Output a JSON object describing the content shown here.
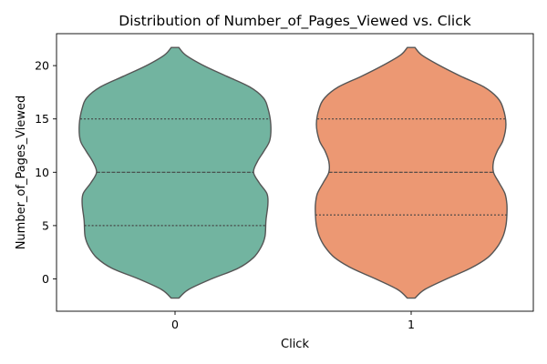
{
  "chart_data": {
    "type": "violin",
    "title": "Distribution of Number_of_Pages_Viewed vs. Click",
    "xlabel": "Click",
    "ylabel": "Number_of_Pages_Viewed",
    "ylim": [
      -3,
      23
    ],
    "yticks": [
      0,
      5,
      10,
      15,
      20
    ],
    "grid": false,
    "series": [
      {
        "category": "0",
        "color": "#72b4a0",
        "y_range": [
          -1.8,
          21.7
        ],
        "quartiles": {
          "q1": 5,
          "median": 10,
          "q3": 15
        },
        "half_width_profile": [
          {
            "y": -1.8,
            "w": 0.04
          },
          {
            "y": -1.0,
            "w": 0.14
          },
          {
            "y": 0.0,
            "w": 0.38
          },
          {
            "y": 1.0,
            "w": 0.66
          },
          {
            "y": 2.0,
            "w": 0.82
          },
          {
            "y": 3.0,
            "w": 0.9
          },
          {
            "y": 4.0,
            "w": 0.94
          },
          {
            "y": 5.5,
            "w": 0.95
          },
          {
            "y": 7.0,
            "w": 0.97
          },
          {
            "y": 8.0,
            "w": 0.96
          },
          {
            "y": 9.0,
            "w": 0.88
          },
          {
            "y": 10.0,
            "w": 0.82
          },
          {
            "y": 11.0,
            "w": 0.86
          },
          {
            "y": 12.0,
            "w": 0.93
          },
          {
            "y": 13.0,
            "w": 0.99
          },
          {
            "y": 14.5,
            "w": 1.0
          },
          {
            "y": 16.0,
            "w": 0.97
          },
          {
            "y": 17.0,
            "w": 0.92
          },
          {
            "y": 18.0,
            "w": 0.78
          },
          {
            "y": 19.0,
            "w": 0.54
          },
          {
            "y": 20.0,
            "w": 0.3
          },
          {
            "y": 21.0,
            "w": 0.11
          },
          {
            "y": 21.7,
            "w": 0.04
          }
        ]
      },
      {
        "category": "1",
        "color": "#ec9873",
        "y_range": [
          -1.8,
          21.7
        ],
        "quartiles": {
          "q1": 6,
          "median": 10,
          "q3": 15
        },
        "half_width_profile": [
          {
            "y": -1.8,
            "w": 0.04
          },
          {
            "y": -1.0,
            "w": 0.14
          },
          {
            "y": 0.0,
            "w": 0.37
          },
          {
            "y": 1.0,
            "w": 0.62
          },
          {
            "y": 2.0,
            "w": 0.8
          },
          {
            "y": 3.0,
            "w": 0.9
          },
          {
            "y": 4.0,
            "w": 0.96
          },
          {
            "y": 5.0,
            "w": 0.99
          },
          {
            "y": 6.0,
            "w": 1.0
          },
          {
            "y": 7.0,
            "w": 1.0
          },
          {
            "y": 8.0,
            "w": 0.98
          },
          {
            "y": 9.0,
            "w": 0.92
          },
          {
            "y": 10.0,
            "w": 0.86
          },
          {
            "y": 11.0,
            "w": 0.86
          },
          {
            "y": 12.0,
            "w": 0.9
          },
          {
            "y": 13.0,
            "w": 0.96
          },
          {
            "y": 14.5,
            "w": 0.99
          },
          {
            "y": 16.0,
            "w": 0.96
          },
          {
            "y": 17.0,
            "w": 0.9
          },
          {
            "y": 18.0,
            "w": 0.76
          },
          {
            "y": 19.0,
            "w": 0.52
          },
          {
            "y": 20.0,
            "w": 0.3
          },
          {
            "y": 21.0,
            "w": 0.11
          },
          {
            "y": 21.7,
            "w": 0.04
          }
        ]
      }
    ],
    "outline_color": "#555555",
    "quartile_line_color": "#444444"
  }
}
